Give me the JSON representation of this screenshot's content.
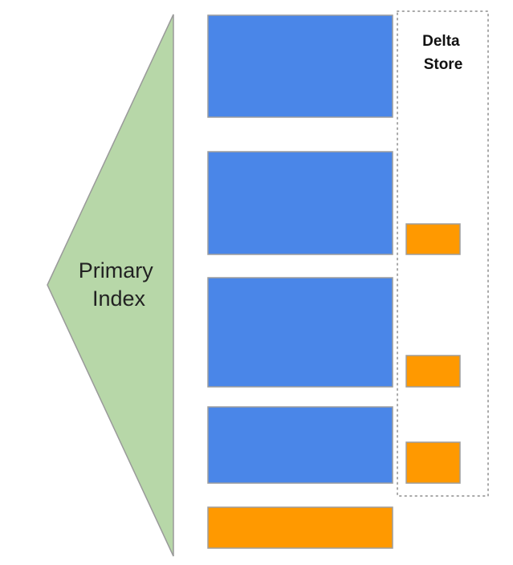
{
  "primary_index": {
    "label_lines": [
      "Primary",
      "Index"
    ]
  },
  "delta_store": {
    "label_lines": [
      "Delta",
      "Store"
    ]
  },
  "colors": {
    "index_fill": "#b7d7a8",
    "index_stroke": "#9a9a9a",
    "block_blue": "#4a86e8",
    "block_orange": "#ff9900",
    "block_stroke": "#9e9e9e",
    "dotted_border": "#a8a8a8"
  }
}
